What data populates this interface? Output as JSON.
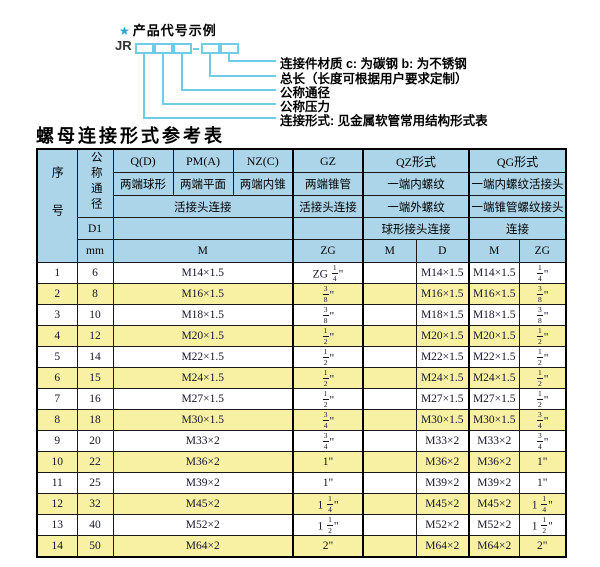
{
  "diagram": {
    "star": "★",
    "title": "产品代号示例",
    "prefix": "JR",
    "labels": [
      "连接件材质  c: 为碳钢  b: 为不锈钢",
      "总长（长度可根据用户要求定制）",
      "公称通径",
      "公称压力",
      "连接形式: 见金属软管常用结构形式表"
    ]
  },
  "table_title": "螺母连接形式参考表",
  "colors": {
    "header_bg": "#add5ea",
    "row_alt_bg": "#f8f1a3",
    "connector_line": "#6fcbe6",
    "star": "#2aa3d8"
  },
  "table": {
    "header": {
      "seq": "序号",
      "dn": "公称通径",
      "d1": "D1",
      "mm": "mm",
      "q": "Q(D)",
      "q_sub": "两端球形",
      "pm": "PM(A)",
      "pm_sub": "两端平面",
      "nz": "NZ(C)",
      "nz_sub": "两端内锥",
      "gz": "GZ",
      "gz_sub": "两端锥管",
      "qz": "QZ形式",
      "qz_sub1": "一端内螺纹",
      "qz_sub2": "一端外螺纹",
      "qz_sub3": "球形接头连接",
      "qg": "QG形式",
      "qg_sub1": "一端内螺纹活接头",
      "qg_sub2": "一端锥管螺纹接头",
      "qg_sub3": "连接",
      "union1": "活接头连接",
      "union2": "活接头连接",
      "m_wide": "M",
      "zg": "ZG",
      "qz_m": "M",
      "qz_d": "D",
      "qg_m": "M",
      "qg_zg": "ZG"
    },
    "rows": [
      [
        "1",
        "6",
        "M14×1.5",
        "ZG 1/4\"",
        "",
        "M14×1.5",
        "M14×1.5",
        "1/4\""
      ],
      [
        "2",
        "8",
        "M16×1.5",
        "3/8\"",
        "",
        "M16×1.5",
        "M16×1.5",
        "3/8\""
      ],
      [
        "3",
        "10",
        "M18×1.5",
        "3/8\"",
        "",
        "M18×1.5",
        "M18×1.5",
        "3/8\""
      ],
      [
        "4",
        "12",
        "M20×1.5",
        "1/2\"",
        "",
        "M20×1.5",
        "M20×1.5",
        "1/2\""
      ],
      [
        "5",
        "14",
        "M22×1.5",
        "1/2\"",
        "",
        "M22×1.5",
        "M22×1.5",
        "1/2\""
      ],
      [
        "6",
        "15",
        "M24×1.5",
        "1/2\"",
        "",
        "M24×1.5",
        "M24×1.5",
        "1/2\""
      ],
      [
        "7",
        "16",
        "M27×1.5",
        "1/2\"",
        "",
        "M27×1.5",
        "M27×1.5",
        "1/2\""
      ],
      [
        "8",
        "18",
        "M30×1.5",
        "3/4\"",
        "",
        "M30×1.5",
        "M30×1.5",
        "3/4\""
      ],
      [
        "9",
        "20",
        "M33×2",
        "3/4\"",
        "",
        "M33×2",
        "M33×2",
        "3/4\""
      ],
      [
        "10",
        "22",
        "M36×2",
        "1\"",
        "",
        "M36×2",
        "M36×2",
        "1\""
      ],
      [
        "11",
        "25",
        "M39×2",
        "1\"",
        "",
        "M39×2",
        "M39×2",
        "1\""
      ],
      [
        "12",
        "32",
        "M45×2",
        "1 1/4\"",
        "",
        "M45×2",
        "M45×2",
        "1 1/4\""
      ],
      [
        "13",
        "40",
        "M52×2",
        "1 1/2\"",
        "",
        "M52×2",
        "M52×2",
        "1 1/2\""
      ],
      [
        "14",
        "50",
        "M64×2",
        "2\"",
        "",
        "M64×2",
        "M64×2",
        "2\""
      ]
    ]
  }
}
